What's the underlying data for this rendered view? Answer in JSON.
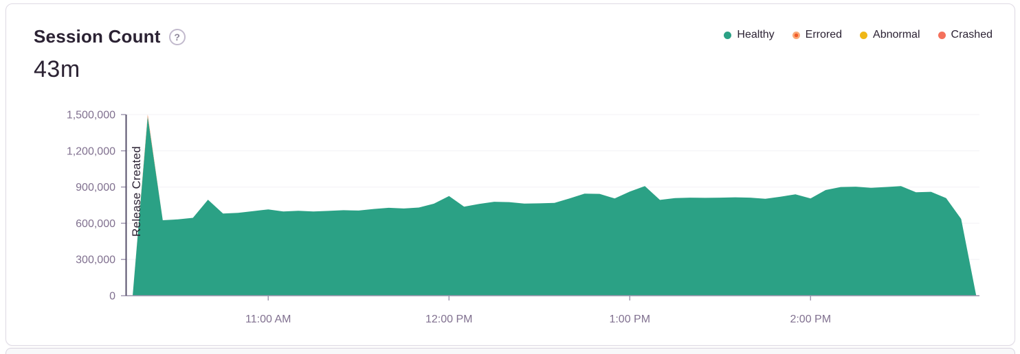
{
  "card": {
    "title": "Session Count",
    "help_icon": "?",
    "total": "43m"
  },
  "legend": {
    "items": [
      {
        "label": "Healthy",
        "color": "#2BA185",
        "pattern": "solid"
      },
      {
        "label": "Errored",
        "color": "#F9A876",
        "pattern": "dotted",
        "pattern_dot_color": "#F25B2A"
      },
      {
        "label": "Abnormal",
        "color": "#EFB717",
        "pattern": "solid"
      },
      {
        "label": "Crashed",
        "color": "#F4715C",
        "pattern": "solid"
      }
    ]
  },
  "chart_data": {
    "type": "area",
    "stacked": true,
    "title": "Session Count",
    "total_label": "43m",
    "grid": true,
    "legend_position": "top-right",
    "ylim": [
      0,
      1500000
    ],
    "ylabel": "",
    "xlabel": "",
    "x": [
      "10:15 AM",
      "10:20 AM",
      "10:25 AM",
      "10:30 AM",
      "10:35 AM",
      "10:40 AM",
      "10:45 AM",
      "10:50 AM",
      "10:55 AM",
      "11:00 AM",
      "11:05 AM",
      "11:10 AM",
      "11:15 AM",
      "11:20 AM",
      "11:25 AM",
      "11:30 AM",
      "11:35 AM",
      "11:40 AM",
      "11:45 AM",
      "11:50 AM",
      "11:55 AM",
      "12:00 PM",
      "12:05 PM",
      "12:10 PM",
      "12:15 PM",
      "12:20 PM",
      "12:25 PM",
      "12:30 PM",
      "12:35 PM",
      "12:40 PM",
      "12:45 PM",
      "12:50 PM",
      "12:55 PM",
      "1:00 PM",
      "1:05 PM",
      "1:10 PM",
      "1:15 PM",
      "1:20 PM",
      "1:25 PM",
      "1:30 PM",
      "1:35 PM",
      "1:40 PM",
      "1:45 PM",
      "1:50 PM",
      "1:55 PM",
      "2:00 PM",
      "2:05 PM",
      "2:10 PM",
      "2:15 PM",
      "2:20 PM",
      "2:25 PM",
      "2:30 PM",
      "2:35 PM",
      "2:40 PM",
      "2:45 PM",
      "2:50 PM",
      "2:55 PM"
    ],
    "series": [
      {
        "name": "Healthy",
        "color": "#2BA185",
        "values": [
          0,
          1480000,
          625000,
          632000,
          645000,
          795000,
          680000,
          686000,
          700000,
          715000,
          698000,
          703000,
          698000,
          702000,
          708000,
          705000,
          718000,
          728000,
          722000,
          730000,
          762000,
          825000,
          737000,
          760000,
          778000,
          775000,
          763000,
          765000,
          768000,
          805000,
          845000,
          843000,
          805000,
          862000,
          908000,
          793000,
          808000,
          812000,
          810000,
          812000,
          815000,
          812000,
          803000,
          820000,
          840000,
          805000,
          875000,
          900000,
          903000,
          893000,
          900000,
          908000,
          857000,
          860000,
          808000,
          635000,
          0
        ]
      },
      {
        "name": "Errored",
        "color": "#F4834F",
        "values": [
          0,
          20000,
          0,
          0,
          0,
          0,
          0,
          0,
          0,
          0,
          0,
          0,
          0,
          0,
          0,
          0,
          0,
          0,
          0,
          0,
          0,
          0,
          0,
          0,
          0,
          0,
          0,
          0,
          0,
          0,
          0,
          0,
          0,
          0,
          0,
          0,
          0,
          0,
          0,
          0,
          0,
          0,
          0,
          0,
          0,
          0,
          0,
          0,
          0,
          0,
          0,
          0,
          0,
          0,
          0,
          0,
          0
        ]
      },
      {
        "name": "Abnormal",
        "color": "#EFB717",
        "values": [
          0,
          0,
          0,
          0,
          0,
          0,
          0,
          0,
          0,
          0,
          0,
          0,
          0,
          0,
          0,
          0,
          0,
          0,
          0,
          0,
          0,
          0,
          0,
          0,
          0,
          0,
          0,
          0,
          0,
          0,
          0,
          0,
          0,
          0,
          0,
          0,
          0,
          0,
          0,
          0,
          0,
          0,
          0,
          0,
          0,
          0,
          0,
          0,
          0,
          0,
          0,
          0,
          0,
          0,
          0,
          0,
          0
        ]
      },
      {
        "name": "Crashed",
        "color": "#F4715C",
        "values": [
          0,
          0,
          0,
          0,
          0,
          0,
          0,
          0,
          0,
          0,
          0,
          0,
          0,
          0,
          0,
          0,
          0,
          0,
          0,
          0,
          0,
          0,
          0,
          0,
          0,
          0,
          0,
          0,
          0,
          0,
          0,
          0,
          0,
          0,
          0,
          0,
          0,
          0,
          0,
          0,
          0,
          0,
          0,
          0,
          0,
          0,
          0,
          0,
          0,
          0,
          0,
          0,
          0,
          0,
          0,
          0,
          0
        ]
      }
    ],
    "yticks": [
      {
        "v": 0,
        "label": "0"
      },
      {
        "v": 300000,
        "label": "300,000"
      },
      {
        "v": 600000,
        "label": "600,000"
      },
      {
        "v": 900000,
        "label": "900,000"
      },
      {
        "v": 1200000,
        "label": "1,200,000"
      },
      {
        "v": 1500000,
        "label": "1,500,000"
      }
    ],
    "xticks": [
      {
        "index": 9,
        "label": "11:00 AM"
      },
      {
        "index": 21,
        "label": "12:00 PM"
      },
      {
        "index": 33,
        "label": "1:00 PM"
      },
      {
        "index": 45,
        "label": "2:00 PM"
      }
    ],
    "annotation": {
      "label": "Release Created",
      "x": "10:15 AM"
    }
  },
  "colors": {
    "text_dark": "#2B2233",
    "axis_label": "#80708F",
    "axis_line": "#9B92AC",
    "gridline": "#F5F4F7",
    "release_line": "#57506B",
    "card_border": "#DFDAE4"
  }
}
